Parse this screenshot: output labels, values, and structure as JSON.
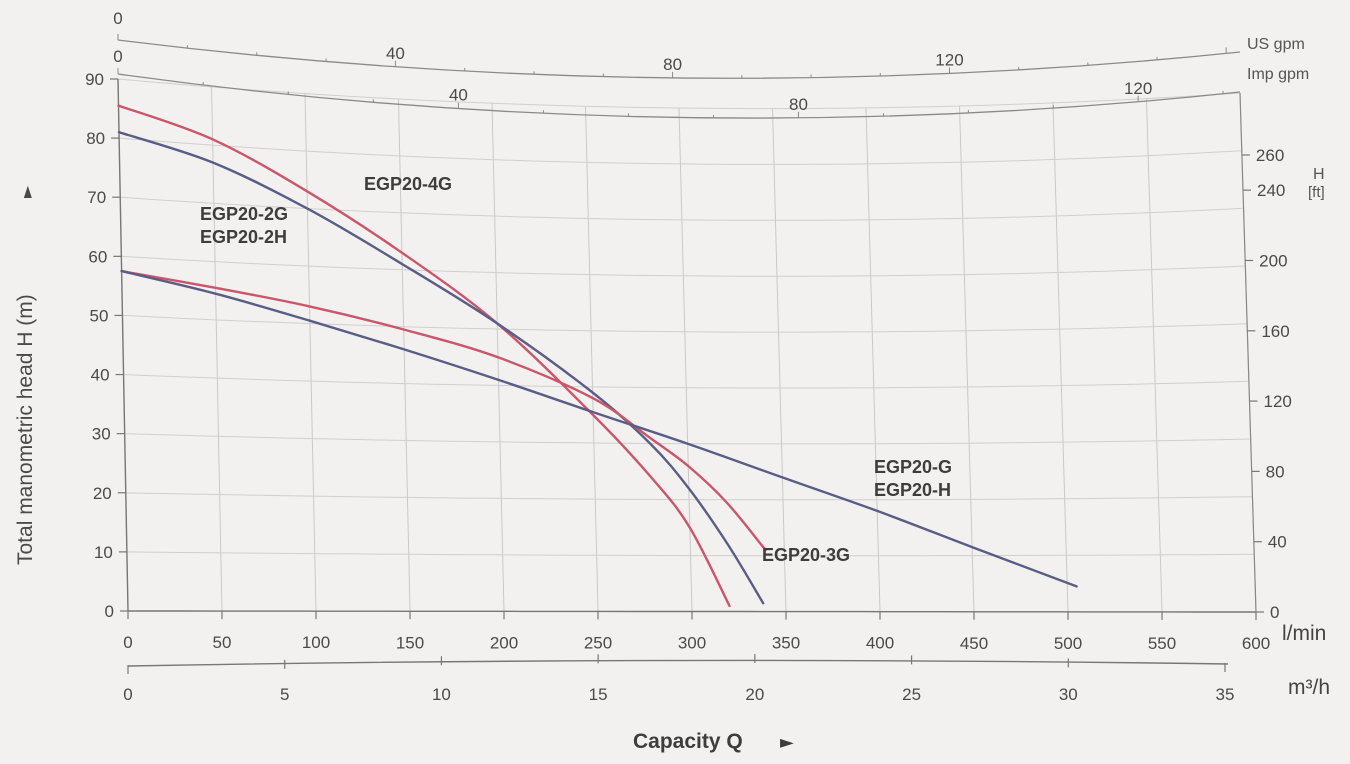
{
  "chart_data": {
    "type": "line",
    "xlabel": "Capacity Q",
    "ylabel": "Total manometric head H (m)",
    "x_unit": "l/min",
    "x_unit_m3": "m³/h",
    "us_unit": "US gpm",
    "imp_unit": "Imp gpm",
    "right_unit_h": "H",
    "right_unit_ft": "[ft]",
    "xlim": [
      0,
      600
    ],
    "ylim": [
      0,
      90
    ],
    "grid": true,
    "x_ticks": [
      0,
      50,
      100,
      150,
      200,
      250,
      300,
      350,
      400,
      450,
      500,
      550,
      600
    ],
    "y_ticks": [
      0,
      10,
      20,
      30,
      40,
      50,
      60,
      70,
      80,
      90
    ],
    "m3h_ticks": [
      0,
      5,
      10,
      15,
      20,
      25,
      30,
      35
    ],
    "ft_ticks": [
      0,
      40,
      80,
      120,
      160,
      200,
      240,
      260
    ],
    "us_gpm_ticks": [
      0,
      40,
      80,
      120
    ],
    "imp_gpm_ticks": [
      0,
      40,
      80,
      120
    ],
    "series": [
      {
        "name": "EGP20-4G",
        "color": "#c9566a",
        "x": [
          0,
          50,
          100,
          150,
          200,
          250,
          280,
          300,
          320
        ],
        "y": [
          85.5,
          81,
          73,
          63,
          51,
          35,
          24,
          15,
          1
        ]
      },
      {
        "name": "EGP20-2G / EGP20-2H",
        "color": "#5a5d85",
        "x": [
          0,
          50,
          100,
          150,
          200,
          250,
          280,
          300,
          320,
          338
        ],
        "y": [
          81,
          77,
          70,
          61,
          51,
          39,
          30,
          22,
          12,
          1.5
        ]
      },
      {
        "name": "EGP20-3G",
        "color": "#c9566a",
        "x": [
          0,
          50,
          100,
          150,
          200,
          250,
          280,
          300,
          320,
          340
        ],
        "y": [
          57.5,
          55.5,
          53,
          49.5,
          45,
          38,
          31,
          26,
          19.5,
          11
        ]
      },
      {
        "name": "EGP20-G / EGP20-H",
        "color": "#5a5d85",
        "x": [
          0,
          50,
          100,
          150,
          200,
          250,
          300,
          350,
          400,
          450,
          505
        ],
        "y": [
          57.5,
          54.5,
          50.5,
          46,
          41,
          35.5,
          30,
          24,
          18,
          11.5,
          4.5
        ]
      }
    ],
    "annotations": [
      {
        "text": "EGP20-4G",
        "series": 0
      },
      {
        "text": "EGP20-2G",
        "series": 1
      },
      {
        "text": "EGP20-2H",
        "series": 1
      },
      {
        "text": "EGP20-3G",
        "series": 2
      },
      {
        "text": "EGP20-G",
        "series": 3
      },
      {
        "text": "EGP20-H",
        "series": 3
      }
    ]
  }
}
